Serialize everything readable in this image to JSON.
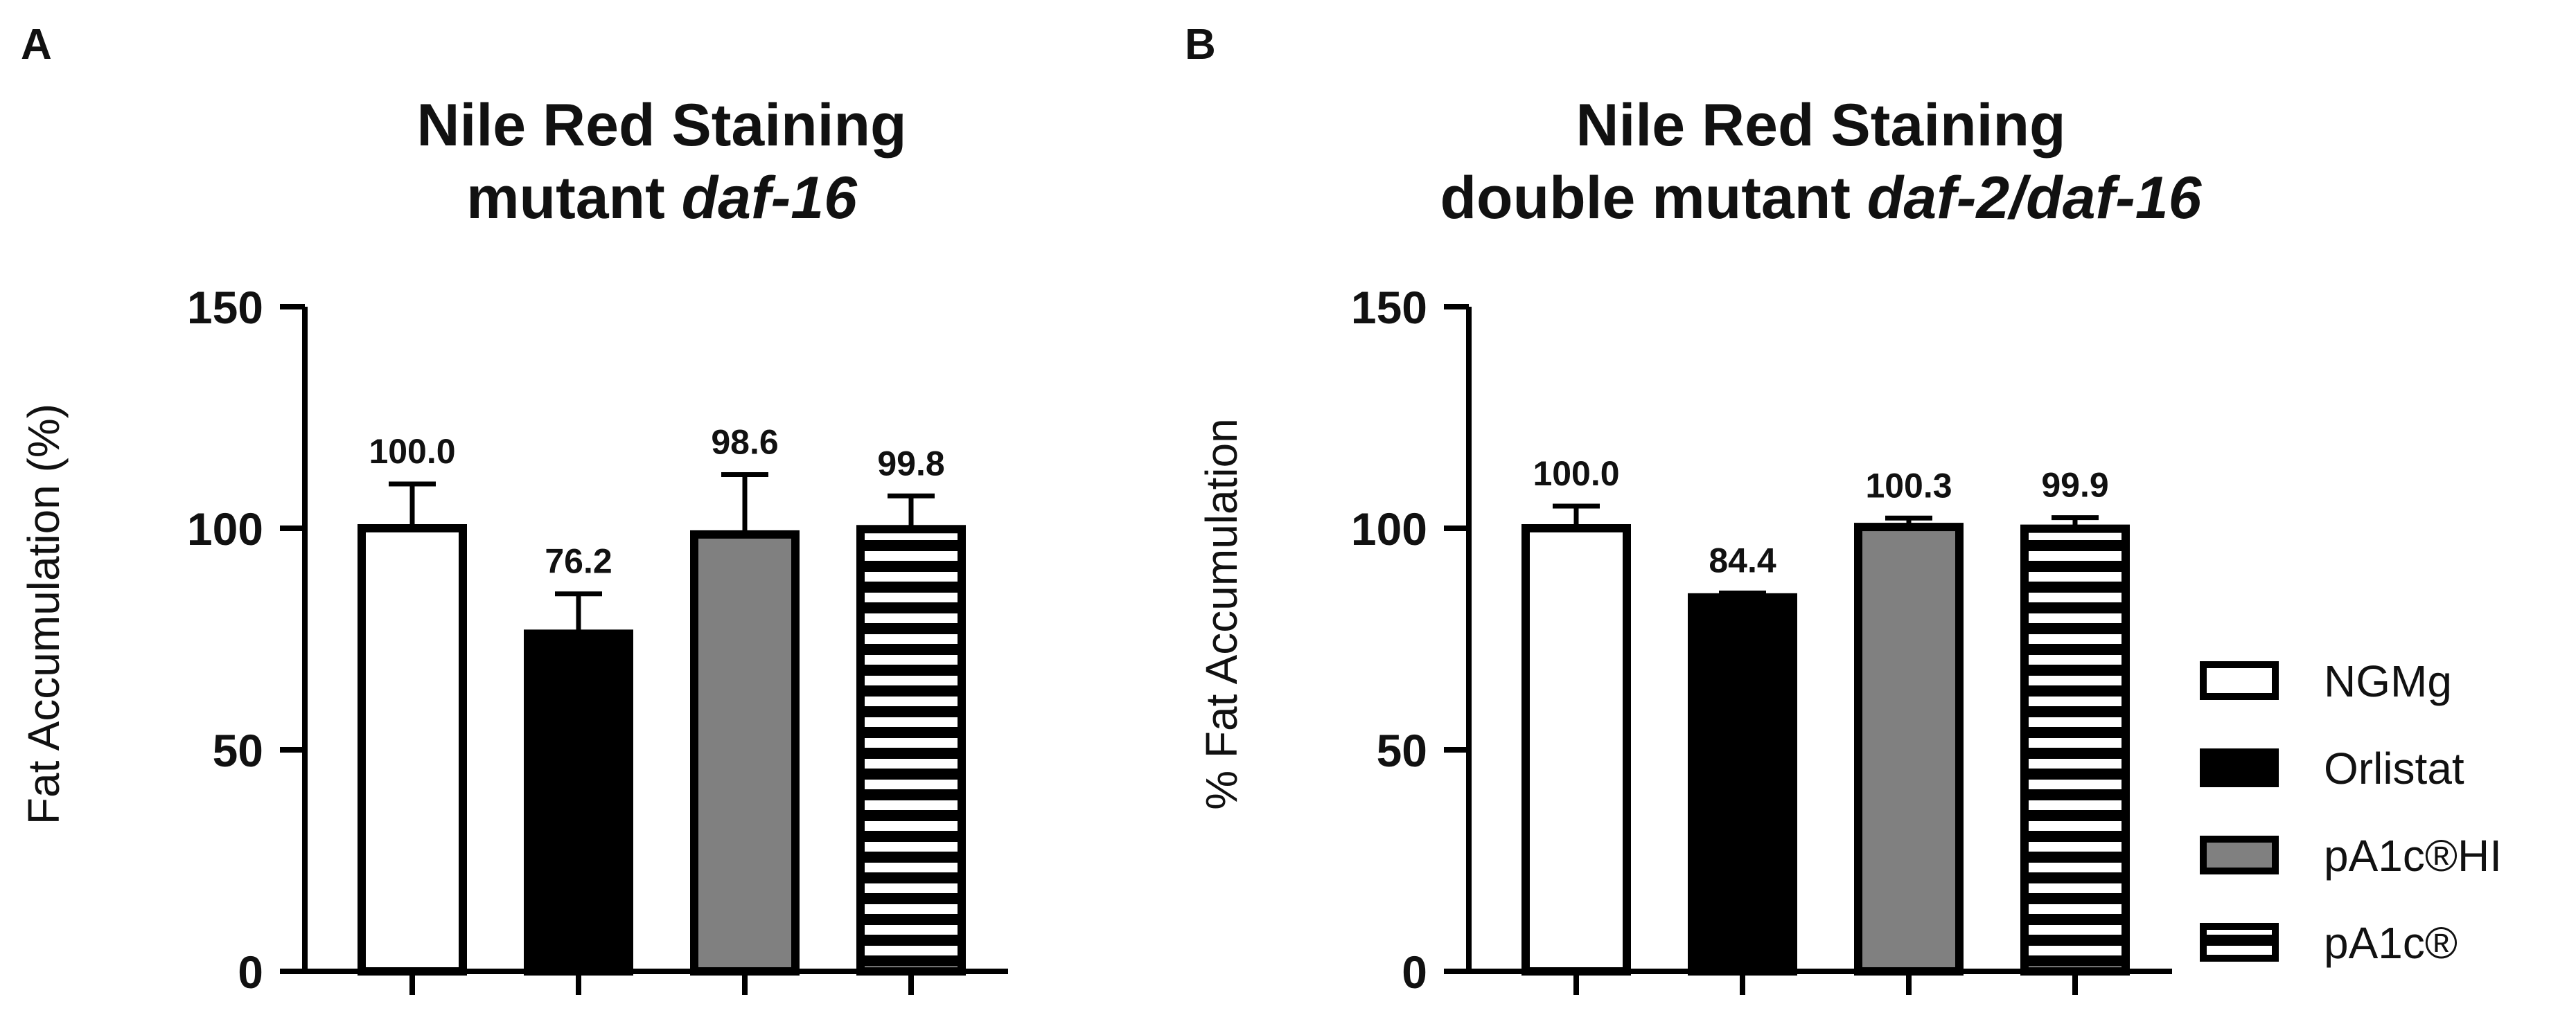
{
  "figure": {
    "panels": [
      {
        "letter": "A",
        "title_line1": "Nile Red Staining",
        "title_line2_prefix": "mutant ",
        "title_line2_italic": "daf-16"
      },
      {
        "letter": "B",
        "title_line1": "Nile Red Staining",
        "title_line2_prefix": "double mutant ",
        "title_line2_italic": "daf-2/daf-16"
      }
    ],
    "legend": [
      {
        "label": "NGMg",
        "style": "white"
      },
      {
        "label": "Orlistat",
        "style": "black"
      },
      {
        "label": "pA1c®HI",
        "style": "gray"
      },
      {
        "label": "pA1c®",
        "style": "striped"
      }
    ],
    "colors": {
      "black": "#000000",
      "gray": "#808080",
      "white": "#ffffff",
      "stroke": "#000000"
    }
  },
  "chart_data": [
    {
      "type": "bar",
      "title": "Nile Red Staining mutant daf-16",
      "xlabel": "",
      "ylabel": "Fat Accumulation (%)",
      "ylim": [
        0,
        150
      ],
      "yticks": [
        0,
        50,
        100,
        150
      ],
      "categories": [
        "NGMg",
        "Orlistat",
        "pA1c®HI",
        "pA1c®"
      ],
      "values": [
        100.0,
        76.2,
        98.6,
        99.8
      ],
      "value_labels": [
        "100.0",
        "76.2",
        "98.6",
        "99.8"
      ],
      "errors": [
        10,
        9,
        13.5,
        7.5
      ]
    },
    {
      "type": "bar",
      "title": "Nile Red Staining double mutant daf-2/daf-16",
      "xlabel": "",
      "ylabel": "% Fat Accumulation",
      "ylim": [
        0,
        150
      ],
      "yticks": [
        0,
        50,
        100,
        150
      ],
      "categories": [
        "NGMg",
        "Orlistat",
        "pA1c®HI",
        "pA1c®"
      ],
      "values": [
        100.0,
        84.4,
        100.3,
        99.9
      ],
      "value_labels": [
        "100.0",
        "84.4",
        "100.3",
        "99.9"
      ],
      "errors": [
        5,
        1,
        2,
        2.5
      ]
    }
  ]
}
